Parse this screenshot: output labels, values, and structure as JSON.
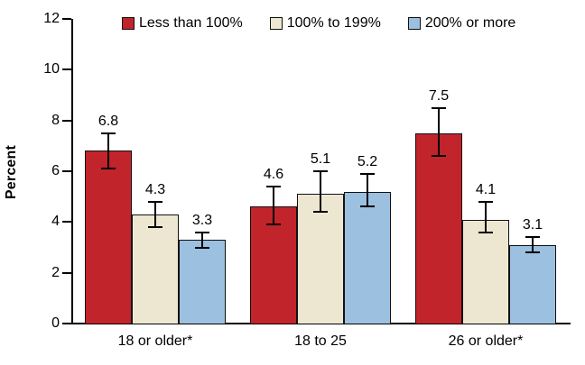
{
  "chart_data": {
    "type": "bar",
    "title": "",
    "xlabel": "",
    "ylabel": "Percent",
    "ylim": [
      0,
      12
    ],
    "yticks": [
      0,
      2,
      4,
      6,
      8,
      10,
      12
    ],
    "categories": [
      "18 or older*",
      "18 to 25",
      "26 or older*"
    ],
    "series": [
      {
        "name": "Less than 100%",
        "color": "#C2242B",
        "values": [
          6.8,
          4.6,
          7.5
        ],
        "ci": [
          [
            6.1,
            7.5
          ],
          [
            3.9,
            5.4
          ],
          [
            6.6,
            8.5
          ]
        ]
      },
      {
        "name": "100% to 199%",
        "color": "#EDE7D2",
        "values": [
          4.3,
          5.1,
          4.1
        ],
        "ci": [
          [
            3.8,
            4.8
          ],
          [
            4.4,
            6.0
          ],
          [
            3.6,
            4.8
          ]
        ]
      },
      {
        "name": "200% or more",
        "color": "#9CC0DF",
        "values": [
          3.3,
          5.2,
          3.1
        ],
        "ci": [
          [
            3.0,
            3.6
          ],
          [
            4.6,
            5.9
          ],
          [
            2.8,
            3.4
          ]
        ]
      }
    ],
    "legend_position": "top",
    "grid": false,
    "error_bars": true,
    "bar_labels": true,
    "bar_label_format": "one-decimal",
    "background": "#FFFFFF",
    "axis_color": "#000000",
    "text_color": "#000000"
  }
}
